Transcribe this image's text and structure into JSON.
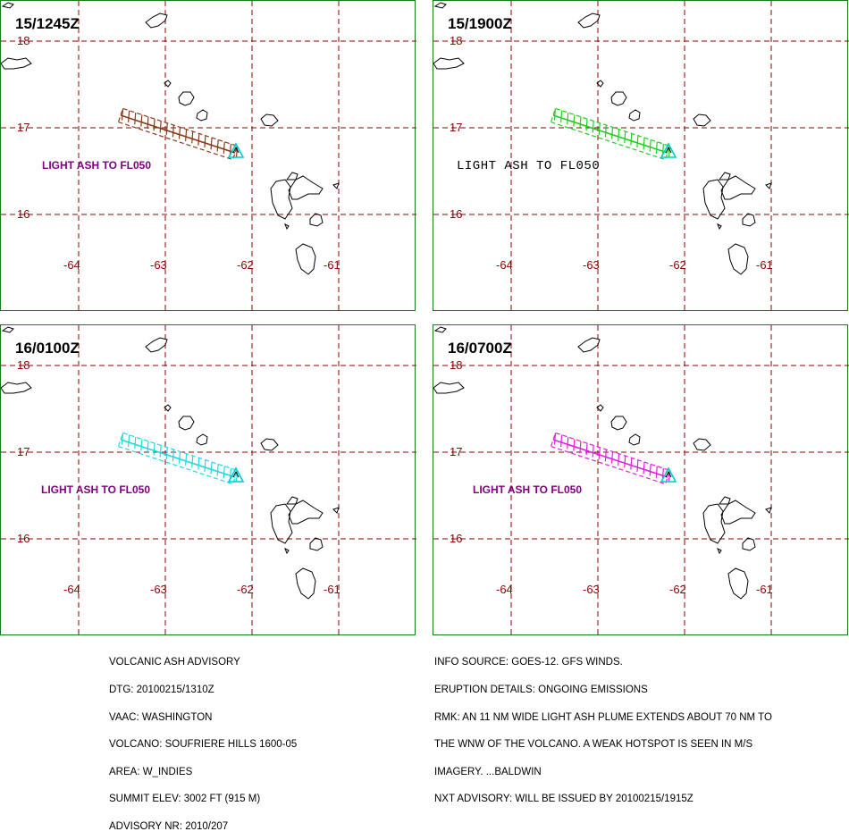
{
  "panels": [
    {
      "time": "15/1245Z",
      "label": "LIGHT ASH TO FL050",
      "plume_color": "#8b3a1a",
      "label_color": "#800080",
      "label_style": "sans"
    },
    {
      "time": "15/1900Z",
      "label": "LIGHT ASH TO FL050",
      "plume_color": "#22cc22",
      "label_color": "#000000",
      "label_style": "mono"
    },
    {
      "time": "16/0100Z",
      "label": "LIGHT ASH TO FL050",
      "plume_color": "#22d8e0",
      "label_color": "#800080",
      "label_style": "sans"
    },
    {
      "time": "16/0700Z",
      "label": "LIGHT ASH TO FL050",
      "plume_color": "#e020e0",
      "label_color": "#800080",
      "label_style": "sans"
    }
  ],
  "grid": {
    "latitudes": [
      "18",
      "17",
      "16"
    ],
    "longitudes": [
      "-64",
      "-63",
      "-62",
      "-61"
    ],
    "grid_color": "#8b0000",
    "volcano_color": "#00cccc",
    "border_color": "#1a7a1a"
  },
  "advisory_left": [
    "VOLCANIC ASH ADVISORY",
    "DTG: 20100215/1310Z",
    "VAAC: WASHINGTON",
    "VOLCANO: SOUFRIERE HILLS 1600-05",
    "AREA: W_INDIES",
    "SUMMIT ELEV: 3002 FT (915 M)",
    "ADVISORY NR: 2010/207"
  ],
  "advisory_right": [
    "INFO SOURCE: GOES-12. GFS WINDS.",
    "ERUPTION DETAILS: ONGOING EMISSIONS",
    "RMK: AN 11 NM WIDE LIGHT ASH PLUME EXTENDS ABOUT 70 NM TO",
    "THE WNW OF THE VOLCANO. A WEAK HOTSPOT IS SEEN IN M/S",
    "IMAGERY. ...BALDWIN",
    "NXT ADVISORY: WILL BE ISSUED BY 20100215/1915Z"
  ]
}
